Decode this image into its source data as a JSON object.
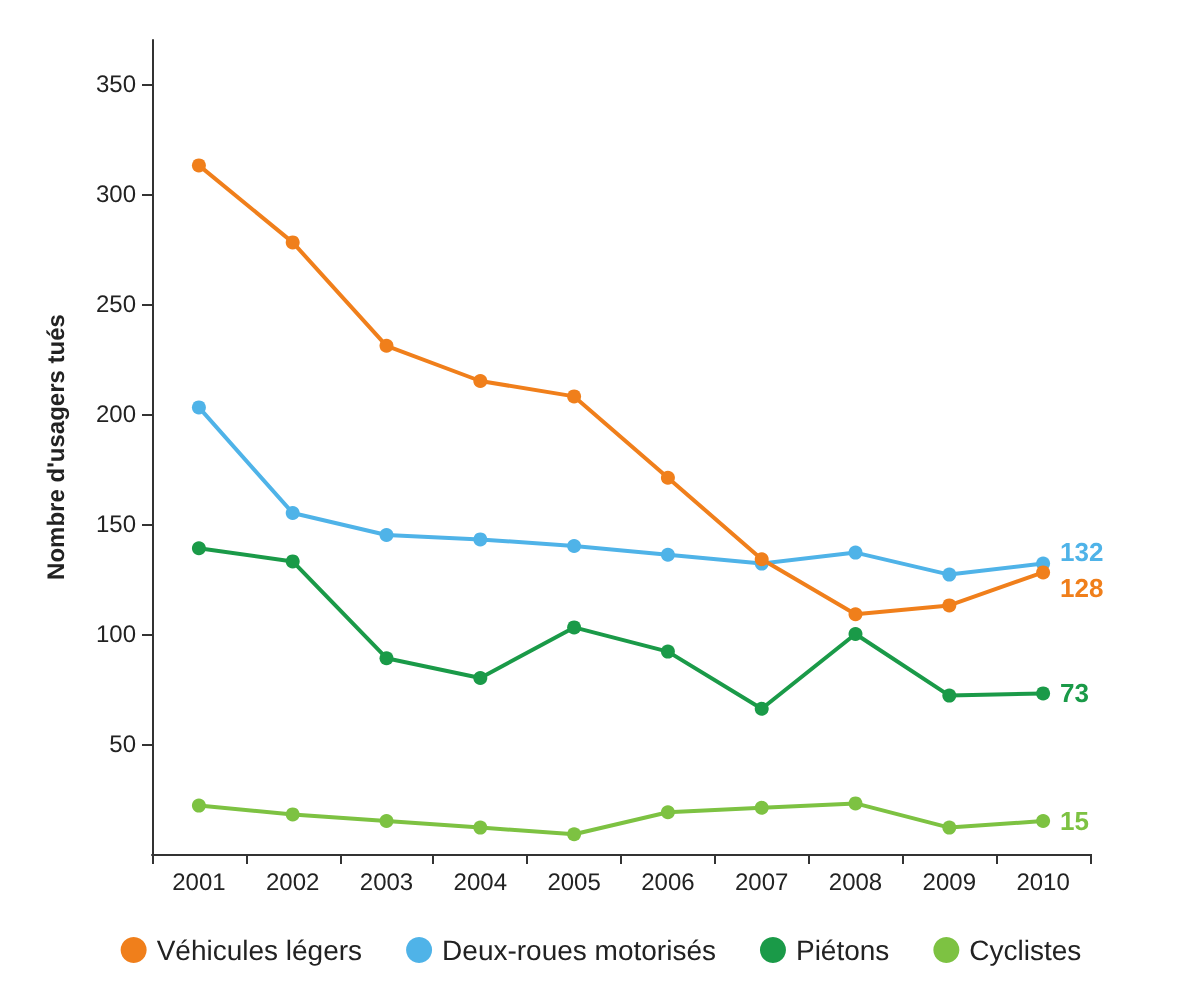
{
  "chart_data": {
    "type": "line",
    "ylabel": "Nombre d'usagers tués",
    "categories": [
      "2001",
      "2002",
      "2003",
      "2004",
      "2005",
      "2006",
      "2007",
      "2008",
      "2009",
      "2010"
    ],
    "series": [
      {
        "name": "Véhicules légers",
        "color": "#f07f1b",
        "values": [
          313,
          278,
          231,
          215,
          208,
          171,
          134,
          109,
          113,
          128
        ],
        "value_labels": [
          null,
          null,
          null,
          null,
          null,
          null,
          null,
          null,
          null,
          "128"
        ]
      },
      {
        "name": "Deux-roues motorisés",
        "color": "#4fb3e8",
        "values": [
          203,
          155,
          145,
          143,
          140,
          136,
          132,
          137,
          127,
          132
        ],
        "value_labels": [
          null,
          null,
          null,
          null,
          null,
          null,
          null,
          null,
          null,
          "132"
        ]
      },
      {
        "name": "Piétons",
        "color": "#1a9a48",
        "values": [
          139,
          133,
          89,
          80,
          103,
          92,
          66,
          100,
          72,
          73
        ],
        "value_labels": [
          null,
          null,
          null,
          null,
          null,
          null,
          null,
          null,
          null,
          "73"
        ]
      },
      {
        "name": "Cyclistes",
        "color": "#7dc242",
        "values": [
          22,
          18,
          15,
          12,
          9,
          19,
          21,
          23,
          12,
          15
        ],
        "value_labels": [
          null,
          null,
          null,
          null,
          null,
          null,
          null,
          null,
          null,
          "15"
        ]
      }
    ],
    "ylim": [
      0,
      370
    ],
    "yticks": [
      50,
      100,
      150,
      200,
      250,
      300,
      350
    ],
    "grid": false,
    "legend": "bottom",
    "marker": "circle",
    "line_style": "solid"
  }
}
